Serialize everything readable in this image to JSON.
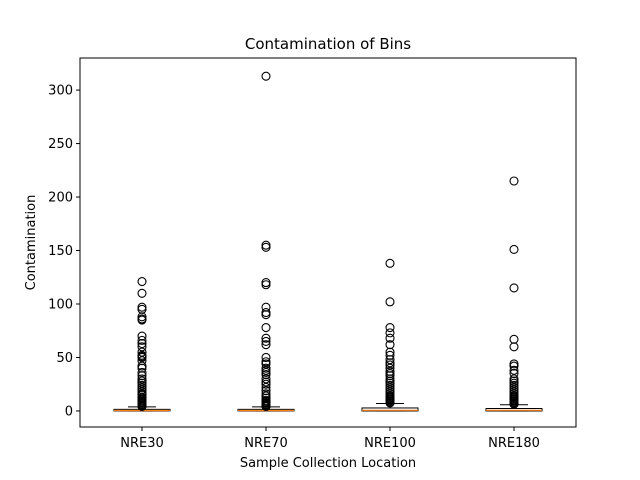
{
  "chart_data": {
    "type": "box",
    "title": "Contamination of Bins",
    "xlabel": "Sample Collection Location",
    "ylabel": "Contamination",
    "ylim": [
      -15,
      330
    ],
    "yticks": [
      0,
      50,
      100,
      150,
      200,
      250,
      300
    ],
    "grid": false,
    "categories": [
      "NRE30",
      "NRE70",
      "NRE100",
      "NRE180"
    ],
    "boxes": [
      {
        "name": "NRE30",
        "q1": 0.0,
        "median": 0.4,
        "q3": 1.5,
        "whisker_low": 0.0,
        "whisker_high": 3.8,
        "outliers": [
          121,
          110,
          97,
          95,
          88,
          86,
          85,
          70,
          66,
          63,
          60,
          55,
          52,
          51,
          50,
          47,
          42,
          40,
          36,
          33,
          30,
          28,
          26,
          24,
          22,
          20,
          18,
          16,
          15,
          13,
          12,
          11,
          10,
          9,
          8,
          7,
          6,
          5.5,
          5,
          4.5,
          4.2
        ]
      },
      {
        "name": "NRE70",
        "q1": 0.0,
        "median": 0.4,
        "q3": 1.5,
        "whisker_low": 0.0,
        "whisker_high": 3.8,
        "outliers": [
          313,
          155,
          153,
          120,
          118,
          97,
          92,
          90,
          78,
          68,
          65,
          62,
          50,
          46,
          44,
          40,
          38,
          36,
          34,
          30,
          27,
          25,
          22,
          19,
          16,
          14,
          12,
          10,
          9,
          8,
          7,
          6,
          5.5,
          5,
          4.5,
          4.2
        ]
      },
      {
        "name": "NRE100",
        "q1": 0.0,
        "median": 0.6,
        "q3": 2.8,
        "whisker_low": 0.0,
        "whisker_high": 7.0,
        "outliers": [
          138,
          102,
          78,
          73,
          68,
          62,
          55,
          52,
          48,
          45,
          43,
          40,
          37,
          35,
          33,
          30,
          28,
          26,
          24,
          22,
          20,
          18,
          16,
          14,
          13,
          12,
          11,
          10,
          9,
          8,
          7.5
        ]
      },
      {
        "name": "NRE180",
        "q1": 0.0,
        "median": 0.6,
        "q3": 2.3,
        "whisker_low": 0.0,
        "whisker_high": 5.8,
        "outliers": [
          215,
          151,
          115,
          67,
          60,
          44,
          42,
          38,
          35,
          30,
          28,
          26,
          24,
          22,
          20,
          18,
          16,
          14,
          13,
          12,
          11,
          10,
          9,
          8,
          7,
          6.3
        ]
      }
    ],
    "colors": {
      "box": "#000000",
      "median": "#ff7f0e",
      "outlier_edge": "#000000",
      "axes": "#000000",
      "background": "#ffffff"
    }
  }
}
